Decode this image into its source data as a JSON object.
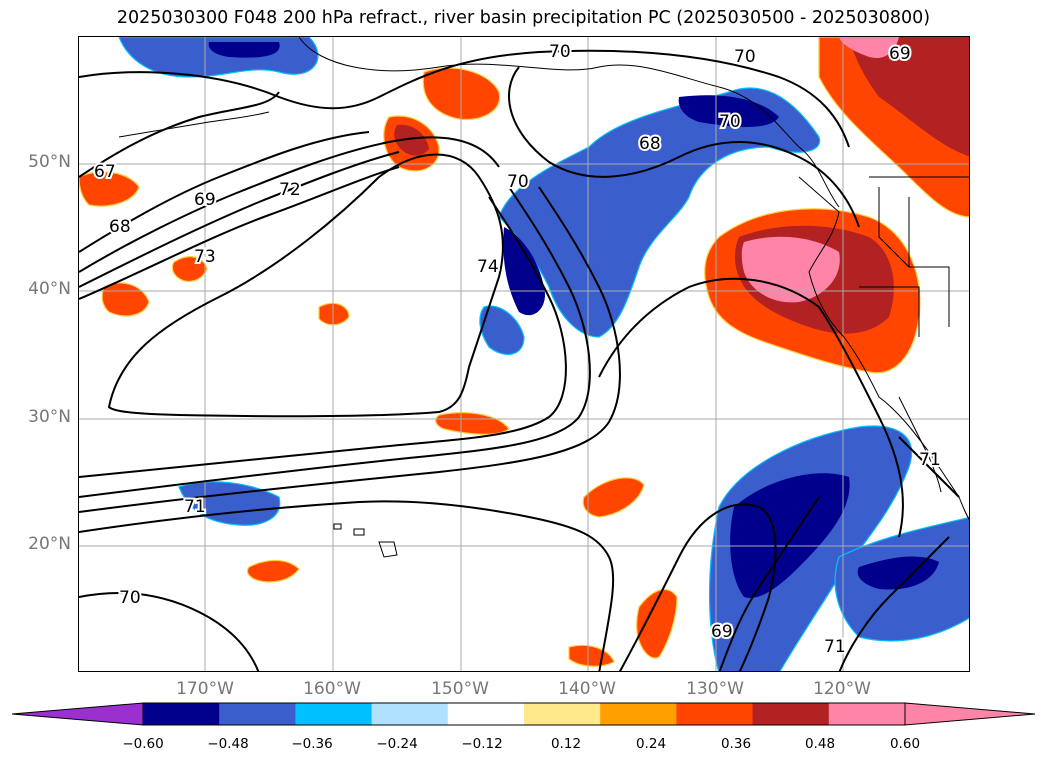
{
  "title": "2025030300 F048 200 hPa refract., river basin precipitation PC (2025030500 - 2025030800)",
  "map": {
    "extent": {
      "lon_min": -180,
      "lon_max": -110,
      "lat_min": 10,
      "lat_max": 60
    },
    "lat_labels": [
      "50°N",
      "40°N",
      "30°N",
      "20°N"
    ],
    "lat_values": [
      50,
      40,
      30,
      20
    ],
    "lon_labels": [
      "170°W",
      "160°W",
      "150°W",
      "140°W",
      "130°W",
      "120°W"
    ],
    "lon_values": [
      -170,
      -160,
      -150,
      -140,
      -130,
      -120
    ],
    "contour_labels": [
      "70",
      "70",
      "69",
      "67",
      "68",
      "69",
      "72",
      "73",
      "70",
      "74",
      "68",
      "70",
      "71",
      "69",
      "71",
      "71",
      "70"
    ],
    "gridlines": true,
    "coastlines": true,
    "state_borders": true
  },
  "colorbar": {
    "ticks": [
      "−0.60",
      "−0.48",
      "−0.36",
      "−0.24",
      "−0.12",
      "0.12",
      "0.24",
      "0.36",
      "0.48",
      "0.60"
    ],
    "colors": [
      "#9b30d0",
      "#00008c",
      "#3a5fcd",
      "#00bfff",
      "#b0e2ff",
      "#ffffff",
      "#ffe98a",
      "#ffa000",
      "#ff4500",
      "#b22222",
      "#ff85a8"
    ],
    "extend": "both"
  }
}
